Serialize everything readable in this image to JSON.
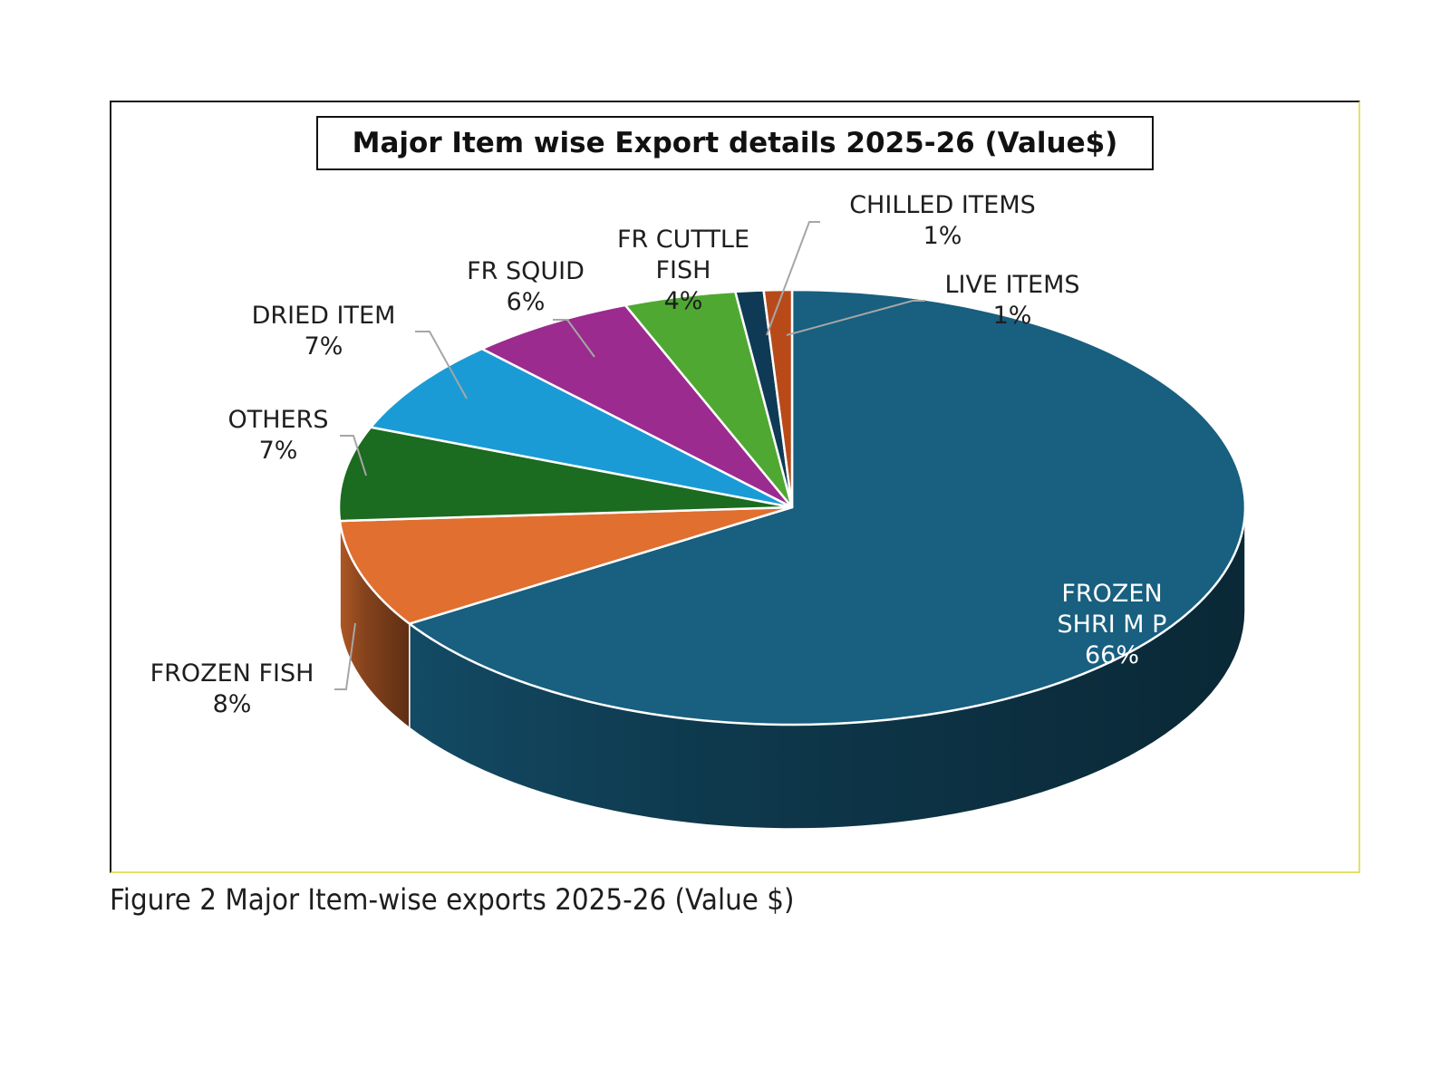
{
  "chart_data": {
    "type": "pie",
    "title": "Major Item wise Export details 2025-26 (Value$)",
    "slices": [
      {
        "label_lines": [
          "FROZEN",
          "SHRI M P"
        ],
        "percent_label": "66%",
        "value": 66,
        "color": "#185f80"
      },
      {
        "label_lines": [
          "FROZEN FISH"
        ],
        "percent_label": "8%",
        "value": 8,
        "color": "#e06f30"
      },
      {
        "label_lines": [
          "OTHERS"
        ],
        "percent_label": "7%",
        "value": 7,
        "color": "#1b6b21"
      },
      {
        "label_lines": [
          "DRIED ITEM"
        ],
        "percent_label": "7%",
        "value": 7,
        "color": "#1a9bd6"
      },
      {
        "label_lines": [
          "FR SQUID"
        ],
        "percent_label": "6%",
        "value": 6,
        "color": "#9b2b8e"
      },
      {
        "label_lines": [
          "FR CUTTLE",
          "FISH"
        ],
        "percent_label": "4%",
        "value": 4,
        "color": "#4fa832"
      },
      {
        "label_lines": [
          "CHILLED ITEMS"
        ],
        "percent_label": "1%",
        "value": 1,
        "color": "#0f3a55"
      },
      {
        "label_lines": [
          "LIVE ITEMS"
        ],
        "percent_label": "1%",
        "value": 1,
        "color": "#b84a1a"
      }
    ],
    "style": "3d",
    "legend": "none"
  },
  "caption": "Figure 2 Major Item-wise exports 2025-26 (Value $)"
}
